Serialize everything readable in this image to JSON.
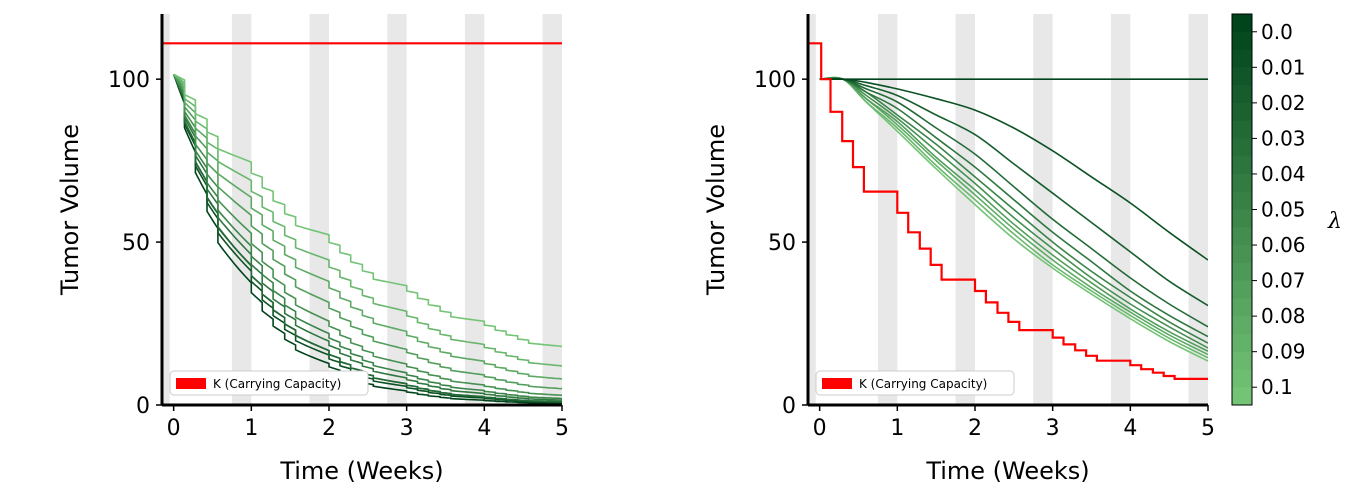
{
  "chart_data": [
    {
      "type": "line",
      "xlabel": "Time (Weeks)",
      "ylabel": "Tumor Volume",
      "xlim": [
        -0.15,
        5
      ],
      "ylim": [
        0,
        120
      ],
      "xticks": [
        "0",
        "1",
        "2",
        "3",
        "4",
        "5"
      ],
      "yticks": [
        "0",
        "50",
        "100"
      ],
      "carrying_capacity": 111,
      "legend": {
        "label": "K (Carrying Capacity)",
        "color": "#ff0000",
        "placement": "lower-left"
      },
      "shaded_intervals": [
        [
          -0.15,
          -0.05
        ],
        [
          0.75,
          1.0
        ],
        [
          1.75,
          2.0
        ],
        [
          2.75,
          3.0
        ],
        [
          3.75,
          4.0
        ],
        [
          4.75,
          5.0
        ]
      ],
      "dose_times": [
        0.0,
        0.14,
        0.28,
        0.43,
        0.57,
        1.0,
        1.14,
        1.28,
        1.43,
        1.57,
        2.0,
        2.14,
        2.28,
        2.43,
        2.57,
        3.0,
        3.14,
        3.28,
        3.43,
        3.57,
        4.0,
        4.14,
        4.28,
        4.43,
        4.57
      ],
      "series_end_values": [
        18,
        12,
        8,
        5,
        3,
        2,
        1.5,
        1,
        1,
        0.8,
        0.5
      ]
    },
    {
      "type": "line",
      "xlabel": "Time (Weeks)",
      "ylabel": "Tumor Volume",
      "xlim": [
        -0.15,
        5
      ],
      "ylim": [
        0,
        120
      ],
      "xticks": [
        "0",
        "1",
        "2",
        "3",
        "4",
        "5"
      ],
      "yticks": [
        "0",
        "50",
        "100"
      ],
      "legend": {
        "label": "K (Carrying Capacity)",
        "color": "#ff0000",
        "placement": "lower-left"
      },
      "shaded_intervals": [
        [
          -0.15,
          -0.05
        ],
        [
          0.75,
          1.0
        ],
        [
          1.75,
          2.0
        ],
        [
          2.75,
          3.0
        ],
        [
          3.75,
          4.0
        ],
        [
          4.75,
          5.0
        ]
      ],
      "carrying_capacity_steps": {
        "x": [
          -0.15,
          0.02,
          0.14,
          0.29,
          0.43,
          0.57,
          1.0,
          1.14,
          1.29,
          1.43,
          1.57,
          2.0,
          2.14,
          2.29,
          2.43,
          2.57,
          3.0,
          3.14,
          3.29,
          3.43,
          3.57,
          4.0,
          4.14,
          4.29,
          4.43,
          4.57,
          5.0
        ],
        "y": [
          111,
          100,
          90,
          81,
          73,
          65.5,
          59,
          53,
          48,
          43,
          38.5,
          35,
          31.5,
          28.3,
          25.5,
          23,
          20.7,
          18.6,
          16.8,
          15.1,
          13.6,
          12.2,
          11.0,
          9.9,
          8.9,
          8.0,
          8.0
        ]
      },
      "series": [
        {
          "name": "0.0",
          "x": [
            0,
            5
          ],
          "y": [
            100,
            100
          ]
        },
        {
          "name": "0.01",
          "x": [
            0,
            0.3,
            0.6,
            1,
            1.5,
            2,
            2.5,
            3,
            3.5,
            4,
            4.5,
            5
          ],
          "y": [
            100,
            100,
            99,
            97,
            94,
            90.5,
            85,
            78,
            70,
            62,
            53,
            44.5
          ]
        },
        {
          "name": "0.02",
          "x": [
            0,
            0.3,
            0.6,
            1,
            1.5,
            2,
            2.5,
            3,
            3.5,
            4,
            4.5,
            5
          ],
          "y": [
            100,
            100,
            98,
            95,
            89,
            83,
            74,
            65,
            56,
            47,
            38,
            30.5
          ]
        },
        {
          "name": "0.03",
          "x": [
            0,
            0.3,
            0.6,
            1,
            1.5,
            2,
            2.5,
            3,
            3.5,
            4,
            4.5,
            5
          ],
          "y": [
            100,
            100,
            97,
            93,
            85,
            77,
            67,
            57,
            48,
            39,
            31,
            24
          ]
        },
        {
          "name": "0.04",
          "x": [
            0,
            0.3,
            0.6,
            1,
            1.5,
            2,
            2.5,
            3,
            3.5,
            4,
            4.5,
            5
          ],
          "y": [
            100,
            100,
            96,
            91,
            82,
            73,
            63,
            53,
            44,
            35,
            27.5,
            21
          ]
        },
        {
          "name": "0.05",
          "x": [
            0,
            0.3,
            0.6,
            1,
            1.5,
            2,
            2.5,
            3,
            3.5,
            4,
            4.5,
            5
          ],
          "y": [
            100,
            100,
            96,
            89,
            80,
            70,
            60,
            50,
            41,
            33,
            25.5,
            19
          ]
        },
        {
          "name": "0.06",
          "x": [
            0,
            0.3,
            0.6,
            1,
            1.5,
            2,
            2.5,
            3,
            3.5,
            4,
            4.5,
            5
          ],
          "y": [
            100,
            100,
            95,
            88,
            78,
            68,
            57.5,
            48,
            39,
            31,
            24,
            17.5
          ]
        },
        {
          "name": "0.07",
          "x": [
            0,
            0.3,
            0.6,
            1,
            1.5,
            2,
            2.5,
            3,
            3.5,
            4,
            4.5,
            5
          ],
          "y": [
            100,
            100,
            94,
            87,
            76,
            66,
            55.5,
            46,
            37.5,
            29.5,
            22.5,
            16.5
          ]
        },
        {
          "name": "0.08",
          "x": [
            0,
            0.3,
            0.6,
            1,
            1.5,
            2,
            2.5,
            3,
            3.5,
            4,
            4.5,
            5
          ],
          "y": [
            100,
            100,
            94,
            86,
            75,
            64.5,
            54,
            44.5,
            36,
            28.5,
            21.5,
            15.5
          ]
        },
        {
          "name": "0.09",
          "x": [
            0,
            0.3,
            0.6,
            1,
            1.5,
            2,
            2.5,
            3,
            3.5,
            4,
            4.5,
            5
          ],
          "y": [
            100,
            100,
            93,
            85,
            73.5,
            63,
            52.5,
            43,
            35,
            27.5,
            20.5,
            14.5
          ]
        },
        {
          "name": "0.1",
          "x": [
            0,
            0.3,
            0.6,
            1,
            1.5,
            2,
            2.5,
            3,
            3.5,
            4,
            4.5,
            5
          ],
          "y": [
            100,
            100,
            93,
            84,
            72.5,
            61.5,
            51,
            42,
            34,
            26.5,
            19.5,
            13.5
          ]
        }
      ]
    }
  ],
  "colorbar": {
    "title": "λ",
    "labels": [
      "0.0",
      "0.01",
      "0.02",
      "0.03",
      "0.04",
      "0.05",
      "0.06",
      "0.07",
      "0.08",
      "0.09",
      "0.1"
    ],
    "color_dark": "#00441b",
    "color_light": "#74c476"
  },
  "colors": {
    "shade": "#e8e8e8",
    "capacity": "#ff0000"
  }
}
